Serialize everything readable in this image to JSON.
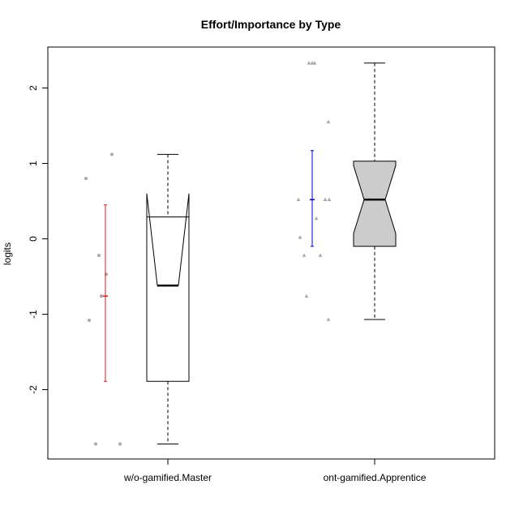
{
  "chart_data": {
    "type": "boxplot",
    "title": "Effort/Importance by Type",
    "xlabel": "",
    "ylabel": "logits",
    "ylim": [
      -2.85,
      2.5
    ],
    "yticks": [
      2,
      1,
      0,
      -1,
      -2
    ],
    "categories": [
      "w/o-gamified.Master",
      "ont-gamified.Apprentice"
    ],
    "boxes": [
      {
        "category": "w/o-gamified.Master",
        "notched": true,
        "fill": "#ffffff",
        "whisker_low": -2.72,
        "q1": -1.89,
        "median": -0.62,
        "q3": 0.29,
        "whisker_high": 1.12,
        "notch_low": 0.6,
        "notch_high": 0.6,
        "points": [
          0.8,
          1.12,
          -0.22,
          -0.47,
          -0.76,
          -0.76,
          -1.08,
          -2.72,
          -2.72
        ],
        "point_shape": "circle",
        "point_color": "#a9a9a9",
        "mean_ci": {
          "mean": -0.76,
          "low": -1.89,
          "high": 0.45,
          "color": "#e41a1c"
        }
      },
      {
        "category": "ont-gamified.Apprentice",
        "notched": true,
        "fill": "#cccccc",
        "whisker_low": -1.07,
        "q1": -0.1,
        "median": 0.52,
        "q3": 1.03,
        "whisker_high": 2.33,
        "notch_low": 0.07,
        "notch_high": 0.97,
        "points": [
          2.33,
          2.33,
          2.33,
          1.55,
          0.52,
          0.52,
          0.52,
          0.27,
          0.02,
          -0.22,
          -0.22,
          -0.76,
          -1.07
        ],
        "point_shape": "triangle",
        "point_color": "#a9a9a9",
        "mean_ci": {
          "mean": 0.52,
          "low": -0.1,
          "high": 1.17,
          "color": "#0000cd"
        }
      }
    ],
    "grid": false,
    "legend": "none"
  }
}
